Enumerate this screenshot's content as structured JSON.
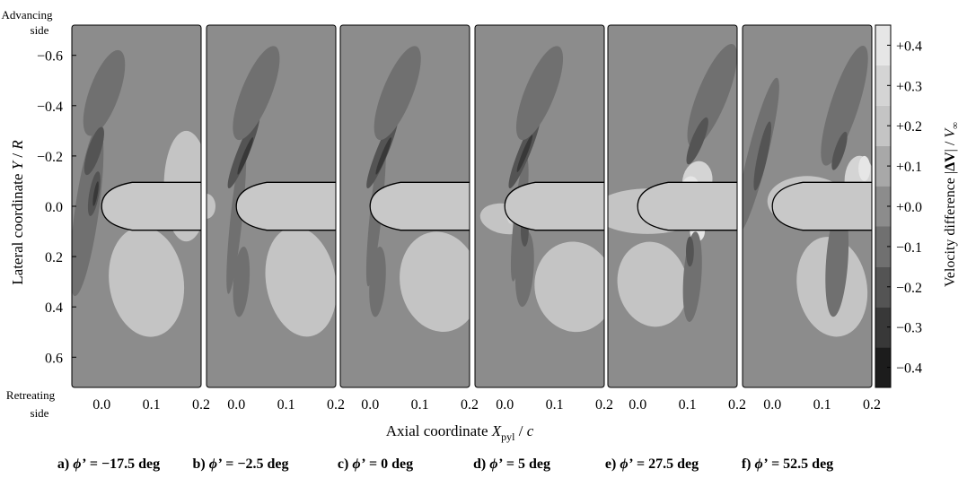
{
  "chart_data": {
    "type": "heatmap",
    "yaxis": {
      "label_main": "Lateral coordinate ",
      "label_symbol": "Y",
      "label_tail": " / ",
      "label_symbol2": "R",
      "range": [
        0.72,
        -0.72
      ],
      "ticks": [
        "-0.6",
        "-0.4",
        "-0.2",
        "0.0",
        "0.2",
        "0.4",
        "0.6"
      ],
      "tick_values": [
        -0.6,
        -0.4,
        -0.2,
        0.0,
        0.2,
        0.4,
        0.6
      ],
      "top_annotation": [
        "Advancing",
        "side"
      ],
      "bottom_annotation": [
        "Retreating",
        "side"
      ]
    },
    "xaxis": {
      "label_main": "Axial coordinate ",
      "label_symbol": "X",
      "label_sub": "pyl",
      "label_tail": " / ",
      "label_symbol2": "c",
      "range": [
        -0.06,
        0.2
      ],
      "ticks": [
        "0.0",
        "0.1",
        "0.2"
      ],
      "tick_values": [
        0.0,
        0.1,
        0.2
      ]
    },
    "colorbar": {
      "label_main": "Velocity difference |",
      "label_bold": "ΔV",
      "label_tail": "| / ",
      "label_symbol": "V",
      "label_sub": "∞",
      "levels": [
        -0.45,
        -0.35,
        -0.25,
        -0.15,
        -0.05,
        0.05,
        0.15,
        0.25,
        0.35,
        0.45
      ],
      "ticks": [
        "+0.4",
        "+0.3",
        "+0.2",
        "+0.1",
        "+0.0",
        "−0.1",
        "−0.2",
        "−0.3",
        "−0.4"
      ],
      "tick_values": [
        0.4,
        0.3,
        0.2,
        0.1,
        0.0,
        -0.1,
        -0.2,
        -0.3,
        -0.4
      ],
      "colors": [
        "#1c1c1c",
        "#383838",
        "#545454",
        "#707070",
        "#8c8c8c",
        "#a8a8a8",
        "#c4c4c4",
        "#d4d4d4",
        "#e6e6e6",
        "#fafafa"
      ]
    },
    "panels": [
      {
        "id": "a",
        "caption_prefix": "a) ",
        "caption_symbol": "ϕ’",
        "caption_value": " = −17.5 deg",
        "mode": 0
      },
      {
        "id": "b",
        "caption_prefix": "b) ",
        "caption_symbol": "ϕ’",
        "caption_value": " = −2.5 deg",
        "mode": 1
      },
      {
        "id": "c",
        "caption_prefix": "c) ",
        "caption_symbol": "ϕ’",
        "caption_value": " = 0 deg",
        "mode": 2
      },
      {
        "id": "d",
        "caption_prefix": "d) ",
        "caption_symbol": "ϕ’",
        "caption_value": " = 5 deg",
        "mode": 3
      },
      {
        "id": "e",
        "caption_prefix": "e) ",
        "caption_symbol": "ϕ’",
        "caption_value": " = 27.5 deg",
        "mode": 4
      },
      {
        "id": "f",
        "caption_prefix": "f) ",
        "caption_symbol": "ϕ’",
        "caption_value": " = 52.5 deg",
        "mode": 5
      }
    ],
    "colors": {
      "background": "#8c8c8c",
      "pylon_body": "#c8c8c8",
      "outline": "#000000"
    },
    "grid": false,
    "legend": "right colorbar"
  }
}
